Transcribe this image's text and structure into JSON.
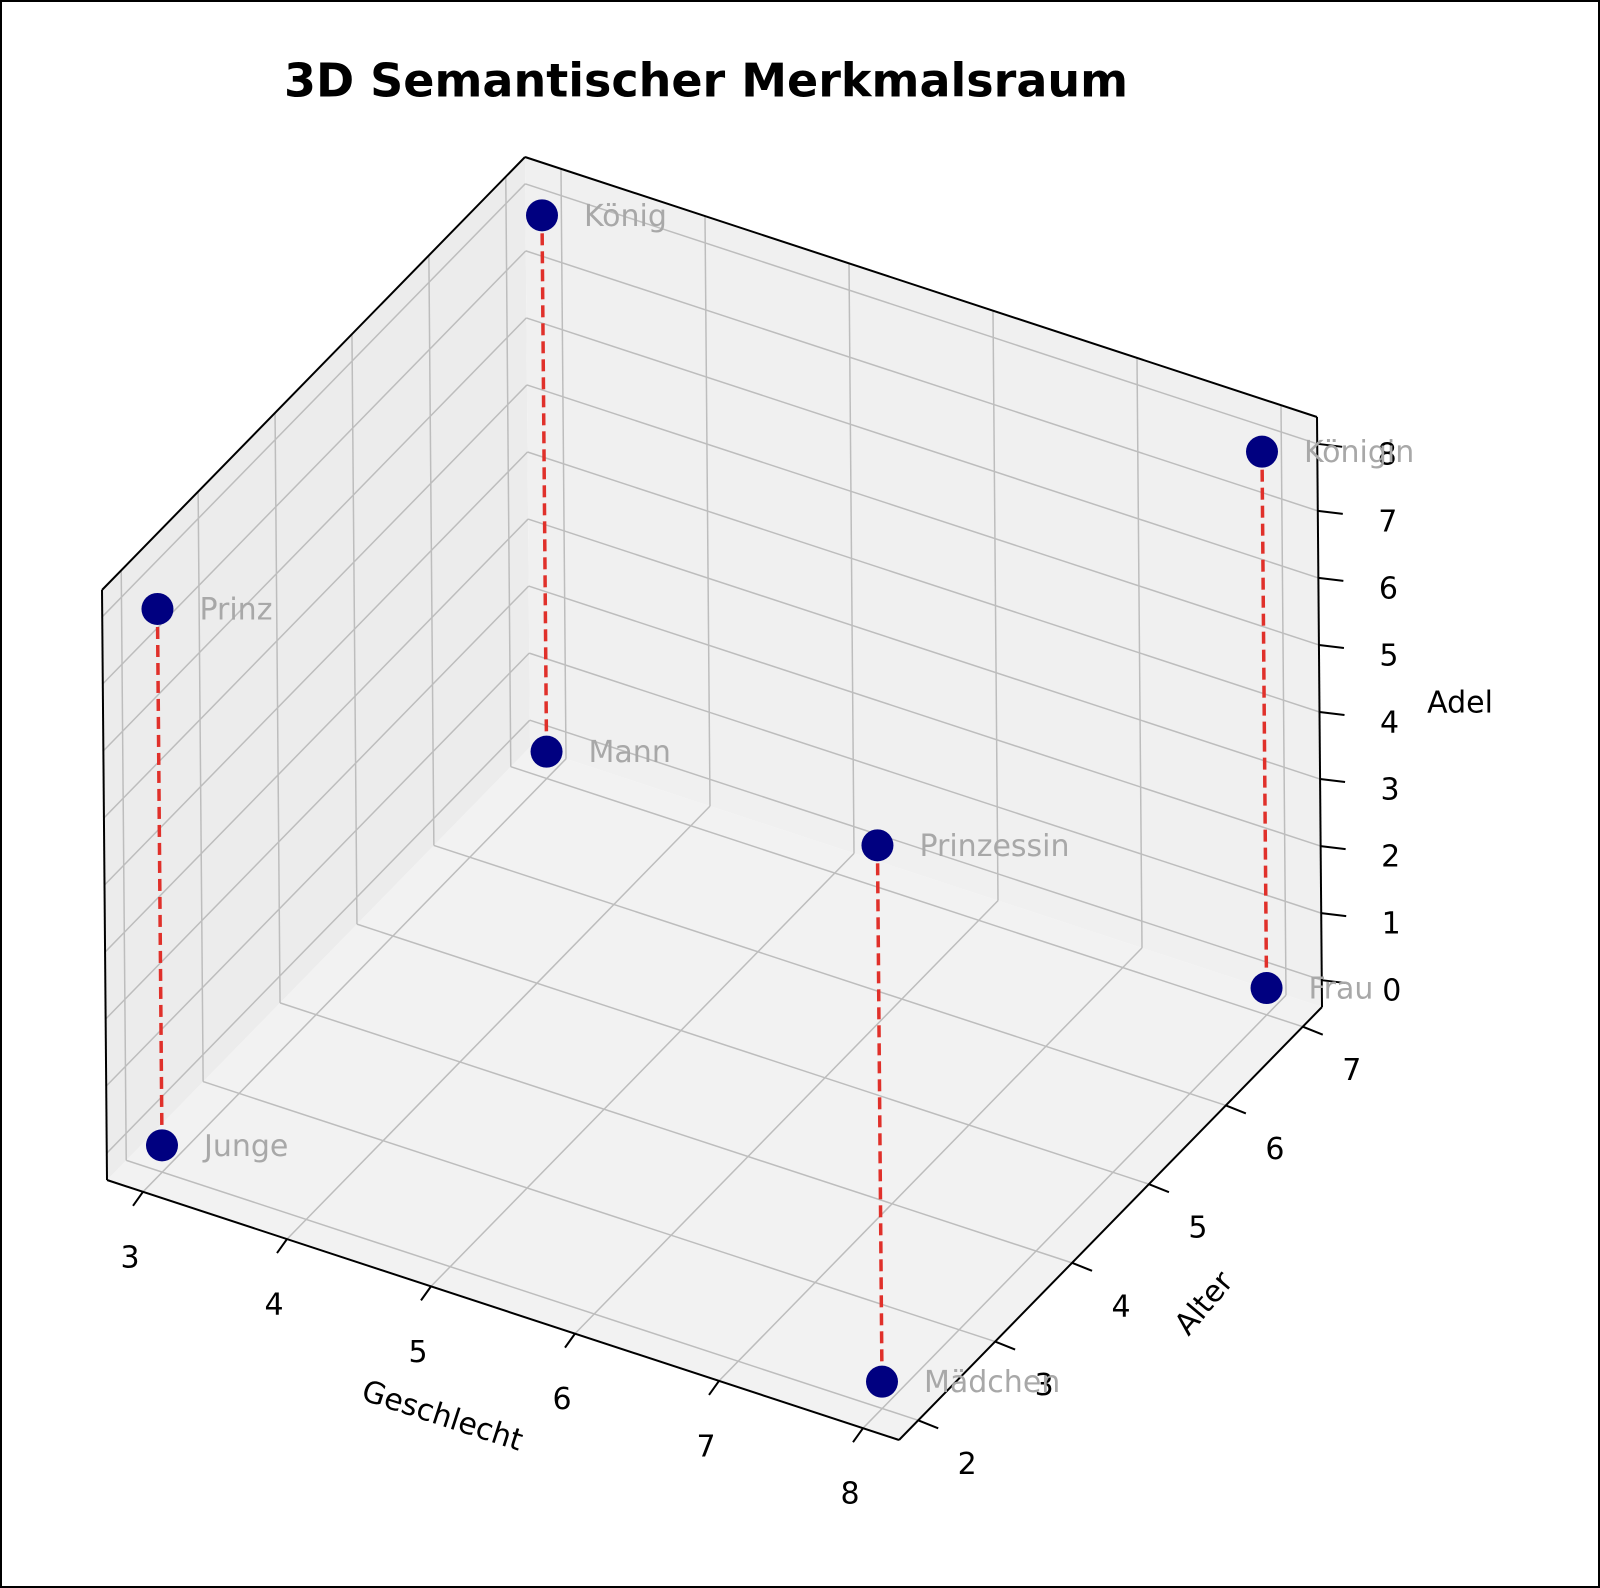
{
  "chart_data": {
    "type": "scatter3d",
    "title": "3D Semantischer Merkmalsraum",
    "x_label": "Geschlecht",
    "y_label": "Alter",
    "z_label": "Adel",
    "points": [
      {
        "label": "König",
        "x": 3,
        "y": 7,
        "z": 8
      },
      {
        "label": "Mann",
        "x": 3,
        "y": 7,
        "z": 0
      },
      {
        "label": "Königin",
        "x": 8,
        "y": 7,
        "z": 8
      },
      {
        "label": "Frau",
        "x": 8,
        "y": 7,
        "z": 0
      },
      {
        "label": "Prinz",
        "x": 3,
        "y": 2,
        "z": 8
      },
      {
        "label": "Junge",
        "x": 3,
        "y": 2,
        "z": 0
      },
      {
        "label": "Prinzessin",
        "x": 8,
        "y": 2,
        "z": 8
      },
      {
        "label": "Mädchen",
        "x": 8,
        "y": 2,
        "z": 0
      }
    ],
    "point_color": "#000080",
    "line_color": "#e0302a",
    "label_color": "#a8a8a8",
    "xlim": [
      2.75,
      8.25
    ],
    "ylim": [
      1.75,
      7.25
    ],
    "zlim": [
      -0.4,
      8.4
    ],
    "xticks": [
      3,
      4,
      5,
      6,
      7,
      8
    ],
    "yticks": [
      2,
      3,
      4,
      5,
      6,
      7
    ],
    "zticks": [
      0,
      1,
      2,
      3,
      4,
      5,
      6,
      7,
      8
    ],
    "grid": true
  }
}
